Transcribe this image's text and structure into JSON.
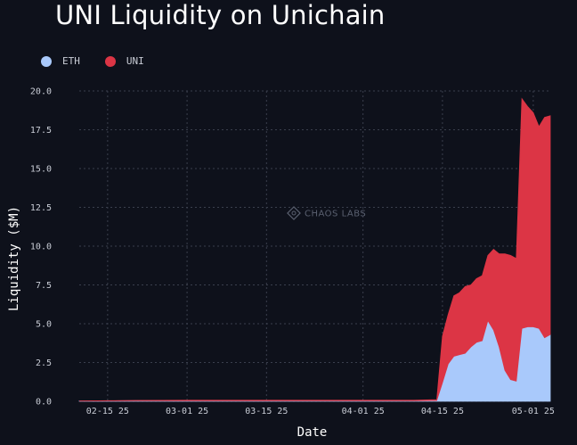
{
  "chart_data": {
    "type": "area",
    "stacked": true,
    "title": "UNI Liquidity on Unichain",
    "xlabel": "Date",
    "ylabel": "Liquidity ($M)",
    "x_ticks": [
      "02-15 25",
      "03-01 25",
      "03-15 25",
      "04-01 25",
      "04-15 25",
      "05-01 25"
    ],
    "x_tick_dates": [
      "2025-02-15",
      "2025-03-01",
      "2025-03-15",
      "2025-04-01",
      "2025-04-15",
      "2025-05-01"
    ],
    "x_range": [
      "2025-02-10",
      "2025-05-04"
    ],
    "ylim": [
      0,
      20
    ],
    "y_ticks": [
      0.0,
      2.5,
      5.0,
      7.5,
      10.0,
      12.5,
      15.0,
      17.5,
      20.0
    ],
    "y_tick_labels": [
      "0.0",
      "2.5",
      "5.0",
      "7.5",
      "10.0",
      "12.5",
      "15.0",
      "17.5",
      "20.0"
    ],
    "grid": true,
    "legend_position": "top-left",
    "watermark": "CHAOS LABS",
    "x": [
      "2025-02-10",
      "2025-02-15",
      "2025-02-20",
      "2025-03-01",
      "2025-03-15",
      "2025-04-01",
      "2025-04-10",
      "2025-04-13",
      "2025-04-14",
      "2025-04-15",
      "2025-04-16",
      "2025-04-17",
      "2025-04-18",
      "2025-04-19",
      "2025-04-20",
      "2025-04-21",
      "2025-04-22",
      "2025-04-23",
      "2025-04-24",
      "2025-04-25",
      "2025-04-26",
      "2025-04-27",
      "2025-04-28",
      "2025-04-29",
      "2025-04-30",
      "2025-05-01",
      "2025-05-02",
      "2025-05-03",
      "2025-05-04"
    ],
    "series": [
      {
        "name": "ETH",
        "color": "#a9c9fb",
        "values": [
          0.02,
          0.03,
          0.04,
          0.04,
          0.04,
          0.04,
          0.04,
          0.05,
          0.05,
          1.2,
          2.4,
          2.9,
          3.0,
          3.1,
          3.5,
          3.8,
          3.9,
          5.2,
          4.6,
          3.5,
          2.0,
          1.4,
          1.3,
          4.7,
          4.8,
          4.8,
          4.7,
          4.1,
          4.3
        ]
      },
      {
        "name": "UNI",
        "color": "#dc3545",
        "values": [
          0.0,
          0.01,
          0.02,
          0.03,
          0.03,
          0.03,
          0.03,
          0.05,
          0.05,
          3.0,
          3.2,
          3.9,
          4.0,
          4.3,
          4.0,
          4.1,
          4.2,
          4.2,
          5.2,
          6.0,
          7.5,
          8.0,
          7.9,
          14.8,
          14.2,
          13.8,
          13.0,
          14.2,
          14.1
        ]
      }
    ]
  }
}
